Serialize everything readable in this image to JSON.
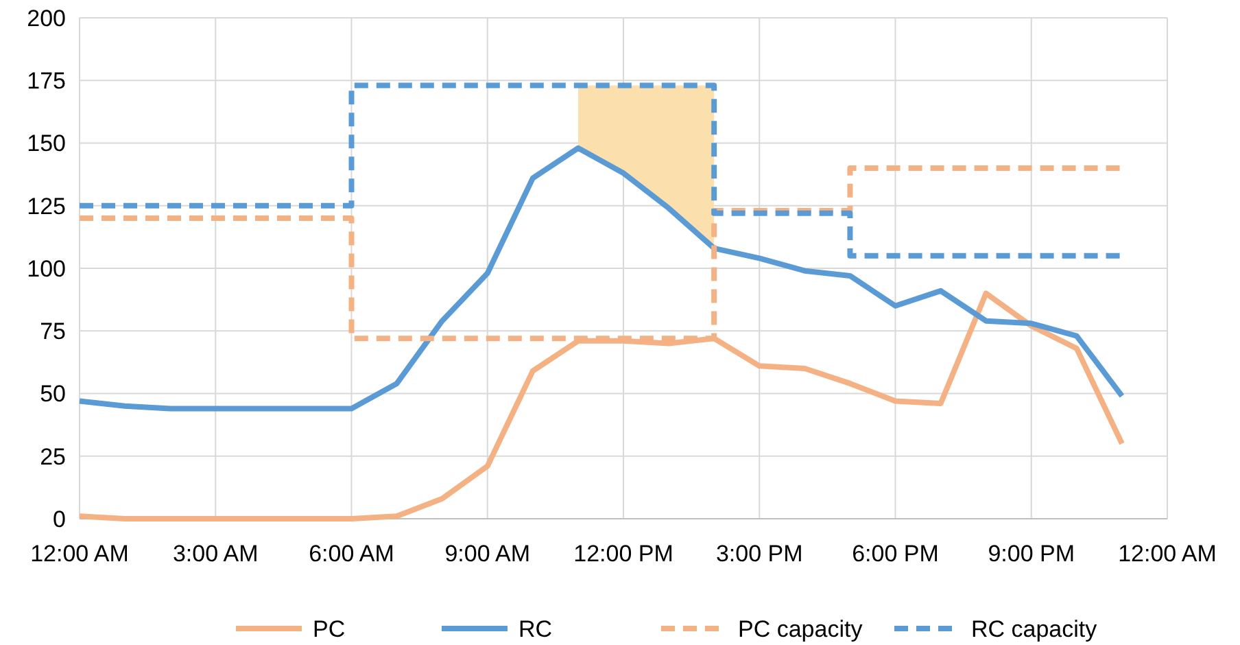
{
  "chart_data": {
    "type": "line",
    "xlim": [
      0,
      24
    ],
    "ylim": [
      0,
      200
    ],
    "xticks": [
      {
        "value": 0,
        "label": "12:00 AM"
      },
      {
        "value": 3,
        "label": "3:00 AM"
      },
      {
        "value": 6,
        "label": "6:00 AM"
      },
      {
        "value": 9,
        "label": "9:00 AM"
      },
      {
        "value": 12,
        "label": "12:00 PM"
      },
      {
        "value": 15,
        "label": "3:00 PM"
      },
      {
        "value": 18,
        "label": "6:00 PM"
      },
      {
        "value": 21,
        "label": "9:00 PM"
      },
      {
        "value": 24,
        "label": "12:00 AM"
      }
    ],
    "yticks": [
      0,
      25,
      50,
      75,
      100,
      125,
      150,
      175,
      200
    ],
    "grid": true,
    "legend": "bottom",
    "x": [
      0,
      1,
      2,
      3,
      4,
      5,
      6,
      7,
      8,
      9,
      10,
      11,
      12,
      13,
      14,
      15,
      16,
      17,
      18,
      19,
      20,
      21,
      22,
      23
    ],
    "series": [
      {
        "name": "PC",
        "color": "#f4b183",
        "values": [
          1,
          0,
          0,
          0,
          0,
          0,
          0,
          1,
          8,
          21,
          59,
          71,
          71,
          70,
          72,
          61,
          60,
          54,
          47,
          46,
          90,
          77,
          68,
          30
        ]
      },
      {
        "name": "RC",
        "color": "#5b9bd5",
        "values": [
          47,
          45,
          44,
          44,
          44,
          44,
          44,
          54,
          79,
          98,
          136,
          148,
          138,
          124,
          108,
          104,
          99,
          97,
          85,
          91,
          79,
          78,
          73,
          49
        ],
        "lower": [
          null,
          null,
          null,
          null,
          null,
          null,
          null,
          null,
          null,
          null,
          null,
          148,
          138,
          124,
          108,
          null,
          null,
          null,
          null,
          null,
          null,
          null,
          null,
          null
        ],
        "upper": [
          null,
          null,
          null,
          null,
          null,
          null,
          null,
          null,
          null,
          null,
          null,
          173,
          173,
          173,
          173,
          null,
          null,
          null,
          null,
          null,
          null,
          null,
          null,
          null
        ]
      },
      {
        "name": "PC capacity",
        "type": "step",
        "line_style": "dashed",
        "color": "#f4b183",
        "x": [
          0,
          6,
          14,
          17,
          23
        ],
        "values": [
          120,
          72,
          123,
          140,
          140
        ]
      },
      {
        "name": "RC capacity",
        "type": "step",
        "line_style": "dashed",
        "color": "#5b9bd5",
        "x": [
          0,
          6,
          14,
          17,
          23
        ],
        "values": [
          125,
          173,
          122,
          105,
          105
        ]
      }
    ]
  }
}
